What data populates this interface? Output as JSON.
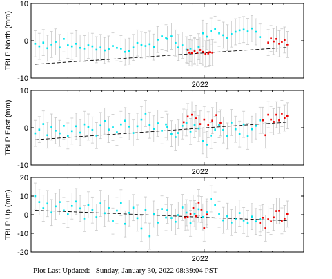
{
  "footer": {
    "label": "Plot Last Updated:",
    "timestamp": "Sunday, January 30, 2022 08:39:04 PST"
  },
  "colors": {
    "accepted": "#00e5ee",
    "recent": "#ee0000",
    "errorbar": "#c8c8c8",
    "trend": "#000000"
  },
  "chart_data": [
    {
      "type": "scatter",
      "ylabel": "TBLP North (mm)",
      "ylim": [
        -10,
        10
      ],
      "yticks": [
        -10,
        0,
        10
      ],
      "xtick_label": "2022",
      "series": [
        {
          "x": [
            0.03,
            0.06,
            0.09,
            0.12,
            0.15,
            0.18,
            0.21,
            0.24,
            0.27,
            0.3,
            0.33,
            0.36,
            0.39,
            0.42,
            0.45,
            0.48,
            0.51,
            0.54,
            0.57,
            0.6,
            0.63,
            0.66,
            0.69,
            0.72,
            0.75,
            0.78,
            0.81,
            0.84,
            0.87,
            0.9,
            0.93,
            0.96,
            0.99
          ],
          "y": [
            -0.8,
            -1.5,
            -0.5,
            -2,
            -1,
            -0.3,
            -1.8,
            0.5,
            -1.2,
            -1.5,
            -0.8,
            -1.9,
            -2.1,
            -1.2,
            -1.5,
            -2.4,
            -1.8,
            -2.6,
            -2.2,
            -1.4,
            -1.9,
            -2.1,
            -3.0,
            -2.8,
            -1.8,
            -0.6,
            -1.1,
            -1.4,
            -0.9,
            -1.7,
            0.3,
            1.2,
            0.8
          ],
          "color": "#00e5ee",
          "error": 3.5
        },
        {
          "x": [
            1.0,
            1.03,
            1.06,
            1.08,
            1.11,
            1.14,
            1.17,
            1.2,
            1.23,
            1.26,
            1.29,
            1.32,
            1.35,
            1.38,
            1.41,
            1.44,
            1.47,
            1.5,
            1.53,
            1.56,
            1.59,
            1.62,
            1.65,
            1.68
          ],
          "y": [
            0.5,
            1.2,
            -0.6,
            -1.8,
            -1.2,
            -2.4,
            -2.1,
            -2.6,
            -1.6,
            2.0,
            1.1,
            2.6,
            3.1,
            2.0,
            1.5,
            0.8,
            1.8,
            2.4,
            2.8,
            3.0,
            2.5,
            3.3,
            2.4,
            1.0
          ],
          "color": "#00e5ee",
          "error": 3.5
        },
        {
          "x": [
            1.15,
            1.16,
            1.18,
            1.2,
            1.22,
            1.24,
            1.26,
            1.28,
            1.3,
            1.31,
            1.33
          ],
          "y": [
            -2.5,
            -3.2,
            -3.3,
            -2.8,
            -3.2,
            -2.5,
            -3.0,
            -3.5,
            -3.4,
            -3.1,
            -3.2
          ],
          "color": "#ee0000",
          "error": 3.5
        },
        {
          "x": [
            1.74,
            1.76,
            1.78,
            1.8,
            1.82,
            1.84,
            1.86,
            1.88
          ],
          "y": [
            -0.5,
            0.6,
            -0.2,
            0.5,
            -0.8,
            -0.3,
            0.2,
            -1.0
          ],
          "color": "#ee0000",
          "error": 3.5
        }
      ],
      "trend": {
        "x0": 0.03,
        "y0": -6.3,
        "x1": 1.88,
        "y1": -1.8
      }
    },
    {
      "type": "scatter",
      "ylabel": "TBLP East (mm)",
      "ylim": [
        -10,
        10
      ],
      "yticks": [
        -10,
        0,
        10
      ],
      "xtick_label": "2022",
      "series": [
        {
          "x": [
            0.03,
            0.06,
            0.09,
            0.12,
            0.15,
            0.18,
            0.21,
            0.24,
            0.27,
            0.3,
            0.33,
            0.36,
            0.39,
            0.42,
            0.45,
            0.48,
            0.51,
            0.54,
            0.57,
            0.6,
            0.63,
            0.66,
            0.69,
            0.72,
            0.75,
            0.78,
            0.81,
            0.84,
            0.87,
            0.9,
            0.93,
            0.96,
            0.99
          ],
          "y": [
            -1.5,
            -0.5,
            1.0,
            -2.0,
            0.2,
            -0.8,
            -1.5,
            0.5,
            -2.2,
            -0.9,
            0.4,
            -1.3,
            0.9,
            0.2,
            -0.6,
            -2.1,
            0.6,
            1.8,
            -0.5,
            0.1,
            -1.2,
            0.9,
            1.9,
            0.3,
            -1.4,
            0.4,
            2.2,
            3.8,
            0.7,
            -0.3,
            1.2,
            -0.8,
            0.9
          ],
          "color": "#00e5ee",
          "error": 3.5
        },
        {
          "x": [
            1.0,
            1.03,
            1.06,
            1.08,
            1.11,
            1.14,
            1.17,
            1.2,
            1.23,
            1.26,
            1.29,
            1.32,
            1.35,
            1.38,
            1.41,
            1.44,
            1.47,
            1.5,
            1.53,
            1.56,
            1.59,
            1.62,
            1.65,
            1.68
          ],
          "y": [
            0.2,
            -1.6,
            -2.5,
            -1.4,
            0.5,
            1.3,
            -1.0,
            0.8,
            -0.2,
            -3.5,
            -4.5,
            -2.1,
            -0.5,
            0.8,
            -0.6,
            -2.2,
            1.4,
            -0.4,
            -1.7,
            0.9,
            -2.3,
            -0.4,
            0.5,
            2.0
          ],
          "color": "#00e5ee",
          "error": 3.5
        },
        {
          "x": [
            1.12,
            1.15,
            1.18,
            1.21,
            1.24,
            1.27,
            1.3,
            1.33,
            1.36,
            1.39
          ],
          "y": [
            1.5,
            3.0,
            3.5,
            2.5,
            1.0,
            2.2,
            0.8,
            1.9,
            3.4,
            1.3
          ],
          "color": "#ee0000",
          "error": 3.5
        },
        {
          "x": [
            1.7,
            1.72,
            1.74,
            1.76,
            1.78,
            1.8,
            1.82,
            1.84,
            1.86,
            1.88
          ],
          "y": [
            2.0,
            -2.0,
            3.5,
            2.2,
            1.6,
            3.5,
            2.0,
            3.8,
            2.6,
            3.2
          ],
          "color": "#ee0000",
          "error": 3.5
        }
      ],
      "trend": {
        "x0": 0.03,
        "y0": -3.2,
        "x1": 1.88,
        "y1": 1.5
      }
    },
    {
      "type": "scatter",
      "ylabel": "TBLP Up (mm)",
      "ylim": [
        -20,
        20
      ],
      "yticks": [
        -20,
        -10,
        0,
        10,
        20
      ],
      "xtick_label": "2022",
      "series": [
        {
          "x": [
            0.03,
            0.06,
            0.09,
            0.12,
            0.15,
            0.18,
            0.21,
            0.24,
            0.27,
            0.3,
            0.33,
            0.36,
            0.39,
            0.42,
            0.45,
            0.48,
            0.51,
            0.54,
            0.57,
            0.6,
            0.63,
            0.66,
            0.69,
            0.72,
            0.75,
            0.78,
            0.81,
            0.84,
            0.87,
            0.9,
            0.93,
            0.96,
            0.99
          ],
          "y": [
            10.0,
            6.8,
            3.5,
            6.0,
            1.2,
            4.5,
            6.8,
            2.3,
            0.2,
            4.7,
            7.1,
            3.4,
            -2.0,
            5.3,
            2.5,
            -1.3,
            6.1,
            0.8,
            3.6,
            -3.4,
            2.2,
            6.4,
            -4.9,
            1.0,
            3.8,
            -1.8,
            -7.4,
            2.6,
            -11.5,
            0.4,
            -4.2,
            3.1,
            -1.5
          ],
          "color": "#00e5ee",
          "error": 7
        },
        {
          "x": [
            1.0,
            1.03,
            1.06,
            1.08,
            1.11,
            1.14,
            1.17,
            1.2,
            1.23,
            1.26,
            1.29,
            1.32,
            1.35,
            1.38,
            1.41,
            1.44,
            1.47,
            1.5,
            1.53,
            1.56,
            1.59,
            1.62,
            1.65,
            1.68
          ],
          "y": [
            2.4,
            -1.7,
            -3.8,
            -0.2,
            3.9,
            1.1,
            -4.6,
            0.6,
            3.0,
            -1.2,
            1.5,
            8.5,
            5.2,
            0.3,
            -3.0,
            -0.8,
            -4.2,
            -2.4,
            0.9,
            -3.1,
            -4.6,
            -1.0,
            -3.6,
            -2.2
          ],
          "color": "#00e5ee",
          "error": 7
        },
        {
          "x": [
            1.13,
            1.15,
            1.17,
            1.19,
            1.21,
            1.23,
            1.25,
            1.27,
            1.29
          ],
          "y": [
            -1.5,
            -1.2,
            0.5,
            3.6,
            -0.8,
            6.5,
            2.8,
            -7.2,
            0.1
          ],
          "color": "#ee0000",
          "error": 7
        },
        {
          "x": [
            1.68,
            1.7,
            1.72,
            1.74,
            1.76,
            1.78,
            1.8,
            1.82,
            1.84,
            1.86,
            1.88
          ],
          "y": [
            -4.3,
            -1.6,
            -7.2,
            -2.4,
            -3.6,
            -1.4,
            2.0,
            2.1,
            -3.3,
            -2.0,
            0.4
          ],
          "color": "#ee0000",
          "error": 7
        }
      ],
      "trend": {
        "x0": 0.03,
        "y0": 2.4,
        "x1": 1.88,
        "y1": -3.2
      }
    }
  ]
}
